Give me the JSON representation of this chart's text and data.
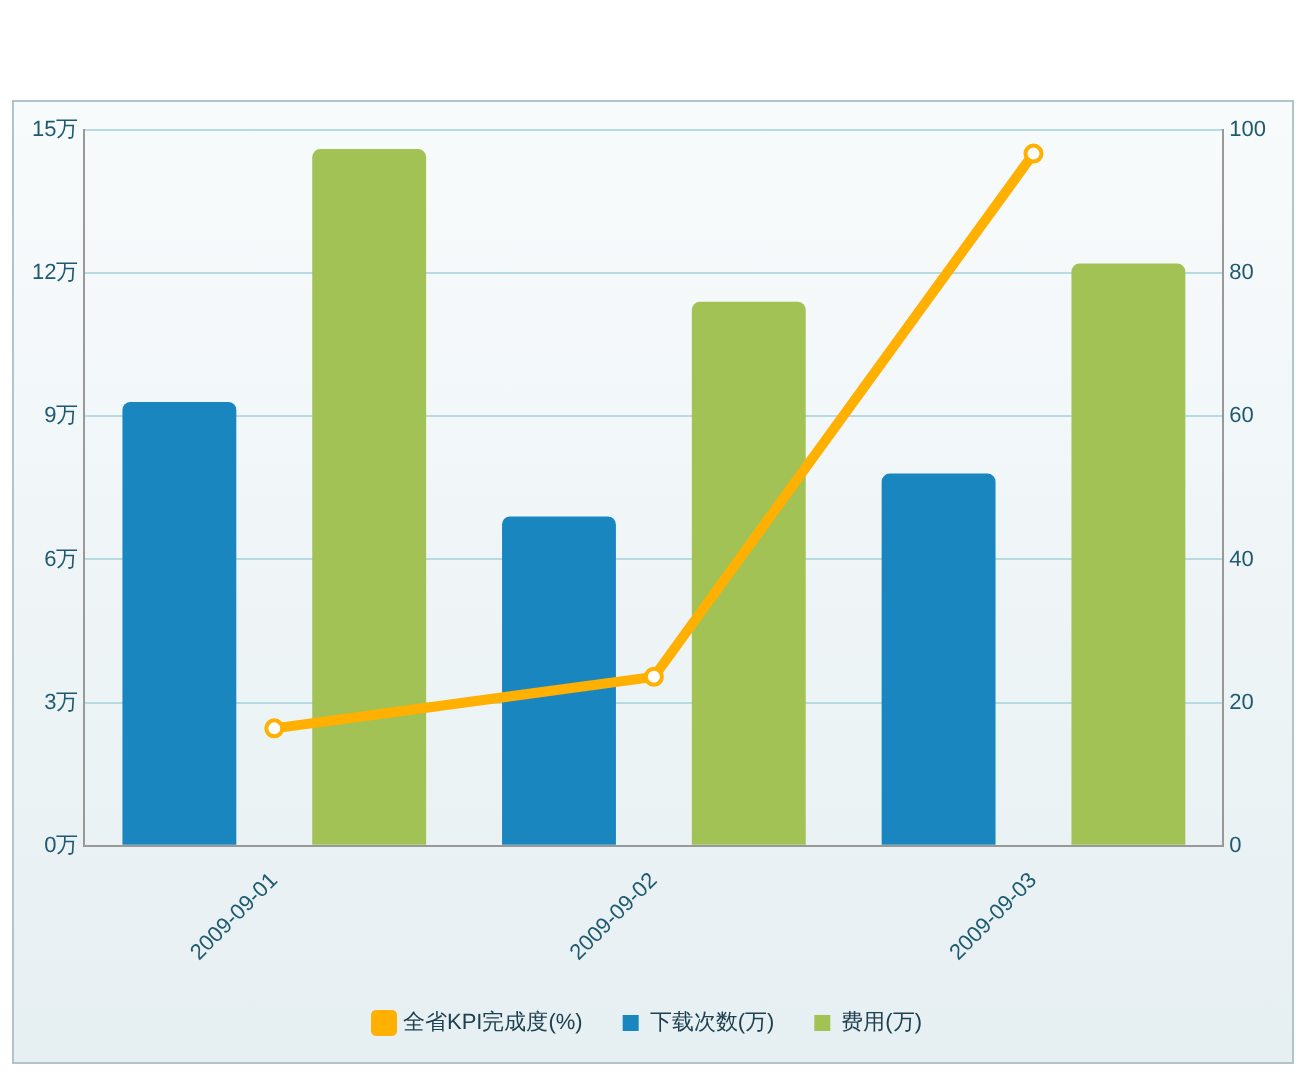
{
  "chart_data": {
    "type": "bar",
    "categories": [
      "2009-09-01",
      "2009-09-02",
      "2009-09-03"
    ],
    "series": [
      {
        "name": "下载次数(万)",
        "color": "#1a86c0",
        "values": [
          9.3,
          6.9,
          7.8
        ]
      },
      {
        "name": "费用(万)",
        "color": "#a3c256",
        "values": [
          14.6,
          11.4,
          12.2
        ]
      },
      {
        "name": "全省KPI完成度(%)",
        "color": "#ffb000",
        "type": "line",
        "axis": "y2",
        "values": [
          16.4,
          23.6,
          96.7
        ]
      }
    ],
    "ylim": [
      0,
      15
    ],
    "yticks": [
      {
        "value": 0,
        "label": "0万"
      },
      {
        "value": 3,
        "label": "3万"
      },
      {
        "value": 6,
        "label": "6万"
      },
      {
        "value": 9,
        "label": "9万"
      },
      {
        "value": 12,
        "label": "12万"
      },
      {
        "value": 15,
        "label": "15万"
      }
    ],
    "y2lim": [
      0,
      100
    ],
    "y2ticks": [
      0,
      20,
      40,
      60,
      80,
      100
    ],
    "grid": "y",
    "legend": "bottom",
    "marker": "circle"
  }
}
